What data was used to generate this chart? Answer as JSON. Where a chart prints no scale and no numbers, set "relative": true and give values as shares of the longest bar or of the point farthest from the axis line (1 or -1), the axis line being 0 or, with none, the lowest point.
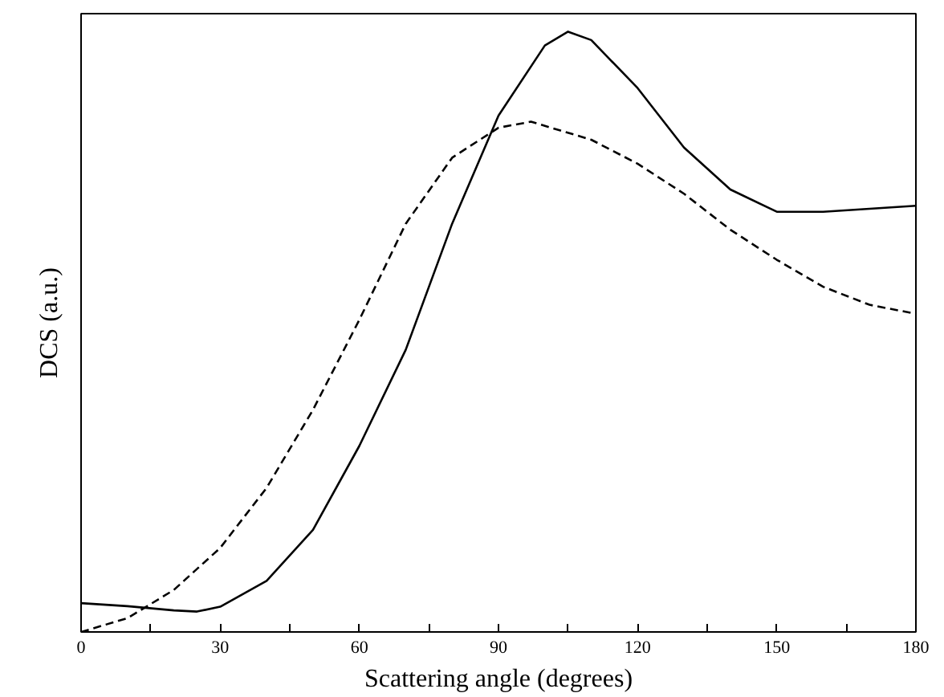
{
  "chart_data": {
    "type": "line",
    "relative": true,
    "xlabel": "Scattering angle (degrees)",
    "ylabel": "DCS (a.u.)",
    "xlim": [
      0,
      180
    ],
    "xticks": [
      0,
      {
        "value": 15,
        "label": null
      },
      30,
      {
        "value": 45,
        "label": null
      },
      60,
      {
        "value": 75,
        "label": null
      },
      90,
      {
        "value": 105,
        "label": null
      },
      120,
      {
        "value": 135,
        "label": null
      },
      150,
      {
        "value": 165,
        "label": null
      },
      180
    ],
    "grid": false,
    "marker": "none",
    "series": [
      {
        "color": "#000000",
        "line_style": "solid",
        "x": [
          0,
          10,
          20,
          25,
          30,
          40,
          50,
          60,
          70,
          80,
          90,
          100,
          105,
          110,
          120,
          130,
          140,
          150,
          160,
          170,
          180
        ],
        "values": [
          0.048,
          0.043,
          0.036,
          0.034,
          0.042,
          0.085,
          0.17,
          0.31,
          0.47,
          0.68,
          0.86,
          0.977,
          1,
          0.986,
          0.906,
          0.807,
          0.737,
          0.7,
          0.7,
          0.705,
          0.71
        ]
      },
      {
        "color": "#000000",
        "line_style": "dashed",
        "x": [
          0,
          10,
          20,
          30,
          40,
          50,
          60,
          70,
          80,
          90,
          97,
          110,
          120,
          130,
          140,
          150,
          160,
          170,
          180
        ],
        "values": [
          0,
          0.023,
          0.07,
          0.14,
          0.24,
          0.37,
          0.52,
          0.68,
          0.79,
          0.84,
          0.85,
          0.82,
          0.78,
          0.73,
          0.67,
          0.62,
          0.575,
          0.545,
          0.53
        ]
      }
    ]
  }
}
